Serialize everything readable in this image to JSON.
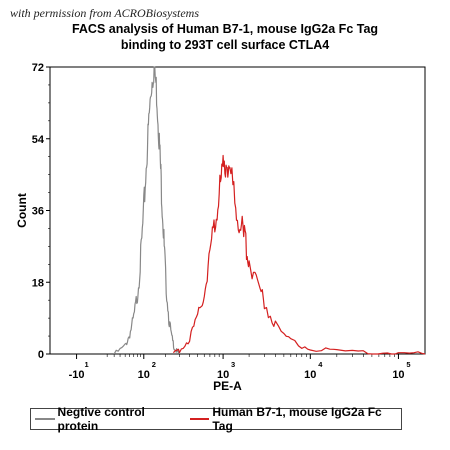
{
  "watermark": "with permission from ACROBiosystems",
  "title_line1": "FACS analysis of Human B7-1, mouse IgG2a Fc Tag",
  "title_line2": "binding to 293T cell surface CTLA4",
  "chart_data": {
    "type": "area",
    "title": "FACS analysis of Human B7-1, mouse IgG2a Fc Tag binding to 293T cell surface CTLA4",
    "xlabel": "PE-A",
    "ylabel": "Count",
    "xscale": "biexponential",
    "xlim": [
      -50,
      200000
    ],
    "ylim": [
      0,
      72
    ],
    "yticks": [
      0,
      18,
      36,
      54,
      72
    ],
    "xticks": [
      {
        "base": "-10",
        "exp": "1",
        "value": -10
      },
      {
        "base": "10",
        "exp": "2",
        "value": 100
      },
      {
        "base": "10",
        "exp": "3",
        "value": 1000
      },
      {
        "base": "10",
        "exp": "4",
        "value": 10000
      },
      {
        "base": "10",
        "exp": "5",
        "value": 100000
      }
    ],
    "grid": false,
    "legend_position": "bottom",
    "series": [
      {
        "name": "Negtive control protein",
        "color": "#888888",
        "x": [
          30,
          50,
          60,
          70,
          80,
          90,
          100,
          110,
          120,
          130,
          140,
          150,
          160,
          170,
          180,
          190,
          200,
          220,
          240,
          260,
          280,
          300
        ],
        "y": [
          0,
          2,
          5,
          9,
          15,
          24,
          36,
          49,
          60,
          68,
          72,
          67,
          58,
          48,
          38,
          28,
          19,
          9,
          4,
          1.5,
          0.5,
          0
        ]
      },
      {
        "name": "Human B7-1, mouse IgG2a Fc Tag",
        "color": "#d42020",
        "x": [
          250,
          300,
          400,
          500,
          600,
          700,
          800,
          900,
          1000,
          1100,
          1200,
          1400,
          1600,
          1800,
          2000,
          2500,
          3000,
          4000,
          6000,
          10000,
          20000,
          50000,
          100000,
          200000
        ],
        "y": [
          0,
          1,
          4,
          9,
          16,
          25,
          33,
          41,
          46,
          49,
          46,
          38,
          32,
          28,
          24,
          18,
          13,
          7,
          3,
          1.2,
          0.5,
          0.3,
          0.2,
          0
        ]
      }
    ]
  }
}
